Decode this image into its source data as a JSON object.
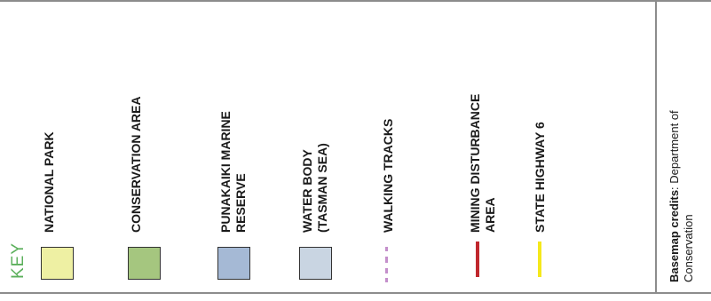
{
  "legend": {
    "title": "KEY",
    "items": [
      {
        "label_lines": [
          "NATIONAL PARK"
        ],
        "symbol": "swatch",
        "color": "#eef0a3"
      },
      {
        "label_lines": [
          "CONSERVATION AREA"
        ],
        "symbol": "swatch",
        "color": "#a5c67f"
      },
      {
        "label_lines": [
          "PUNAKAIKI MARINE",
          "RESERVE"
        ],
        "symbol": "swatch",
        "color": "#a5b9d5"
      },
      {
        "label_lines": [
          "WATER BODY",
          "(TASMAN SEA)"
        ],
        "symbol": "swatch",
        "color": "#c9d5e2"
      },
      {
        "label_lines": [
          "WALKING TRACKS"
        ],
        "symbol": "dashed-line",
        "color": "#c48fcb"
      },
      {
        "label_lines": [
          "MINING DISTURBANCE",
          "AREA"
        ],
        "symbol": "line",
        "color": "#c0272d"
      },
      {
        "label_lines": [
          "STATE HIGHWAY 6"
        ],
        "symbol": "line",
        "color": "#f5e81c"
      }
    ]
  },
  "credits": {
    "bold_text": "Basemap credits",
    "line1_rest": ": Department of",
    "line2": "Conservation"
  },
  "colors": {
    "frame": "#8c8c8c",
    "key_title": "#5cb05c"
  }
}
